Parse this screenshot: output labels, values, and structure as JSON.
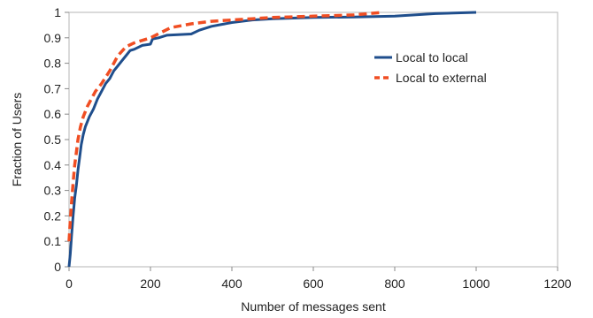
{
  "chart_data": {
    "type": "line",
    "xlabel": "Number of messages sent",
    "ylabel": "Fraction of Users",
    "xlim": [
      0,
      1200
    ],
    "ylim": [
      0,
      1
    ],
    "x_ticks": [
      0,
      200,
      400,
      600,
      800,
      1000,
      1200
    ],
    "y_ticks": [
      0,
      0.1,
      0.2,
      0.3,
      0.4,
      0.5,
      0.6,
      0.7,
      0.8,
      0.9,
      1
    ],
    "grid": false,
    "legend_position": "top-right",
    "series": [
      {
        "name": "Local to local",
        "color": "#1f4e8c",
        "line_style": "solid",
        "points": [
          [
            0,
            0
          ],
          [
            3,
            0.05
          ],
          [
            6,
            0.12
          ],
          [
            10,
            0.2
          ],
          [
            14,
            0.27
          ],
          [
            18,
            0.32
          ],
          [
            22,
            0.38
          ],
          [
            26,
            0.43
          ],
          [
            30,
            0.48
          ],
          [
            35,
            0.52
          ],
          [
            40,
            0.55
          ],
          [
            50,
            0.59
          ],
          [
            60,
            0.62
          ],
          [
            70,
            0.66
          ],
          [
            80,
            0.69
          ],
          [
            90,
            0.72
          ],
          [
            100,
            0.74
          ],
          [
            110,
            0.77
          ],
          [
            120,
            0.79
          ],
          [
            130,
            0.81
          ],
          [
            140,
            0.83
          ],
          [
            150,
            0.85
          ],
          [
            160,
            0.855
          ],
          [
            180,
            0.87
          ],
          [
            200,
            0.875
          ],
          [
            205,
            0.895
          ],
          [
            220,
            0.9
          ],
          [
            240,
            0.91
          ],
          [
            300,
            0.915
          ],
          [
            320,
            0.93
          ],
          [
            350,
            0.945
          ],
          [
            400,
            0.96
          ],
          [
            450,
            0.97
          ],
          [
            500,
            0.975
          ],
          [
            600,
            0.98
          ],
          [
            700,
            0.982
          ],
          [
            800,
            0.985
          ],
          [
            900,
            0.995
          ],
          [
            1000,
            1
          ]
        ]
      },
      {
        "name": "Local to external",
        "color": "#f04e23",
        "line_style": "dashed",
        "points": [
          [
            0,
            0.1
          ],
          [
            3,
            0.18
          ],
          [
            6,
            0.25
          ],
          [
            10,
            0.33
          ],
          [
            14,
            0.4
          ],
          [
            18,
            0.45
          ],
          [
            22,
            0.5
          ],
          [
            28,
            0.55
          ],
          [
            35,
            0.59
          ],
          [
            45,
            0.63
          ],
          [
            55,
            0.66
          ],
          [
            65,
            0.69
          ],
          [
            80,
            0.72
          ],
          [
            100,
            0.77
          ],
          [
            120,
            0.83
          ],
          [
            140,
            0.865
          ],
          [
            160,
            0.88
          ],
          [
            200,
            0.9
          ],
          [
            250,
            0.94
          ],
          [
            300,
            0.955
          ],
          [
            350,
            0.965
          ],
          [
            400,
            0.97
          ],
          [
            450,
            0.975
          ],
          [
            500,
            0.98
          ],
          [
            600,
            0.985
          ],
          [
            700,
            0.99
          ],
          [
            770,
            1
          ]
        ]
      }
    ]
  }
}
